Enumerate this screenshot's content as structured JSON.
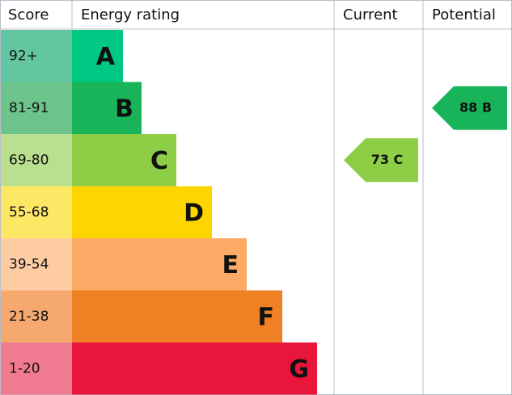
{
  "header": {
    "score": "Score",
    "rating": "Energy rating",
    "current": "Current",
    "potential": "Potential"
  },
  "bands": [
    {
      "score": "92+",
      "letter": "A",
      "color": "#00c781",
      "score_color": "#63c6a0"
    },
    {
      "score": "81-91",
      "letter": "B",
      "color": "#19b459",
      "score_color": "#6dc48a"
    },
    {
      "score": "69-80",
      "letter": "C",
      "color": "#8dce46",
      "score_color": "#badf8f"
    },
    {
      "score": "55-68",
      "letter": "D",
      "color": "#ffd500",
      "score_color": "#ffe766"
    },
    {
      "score": "39-54",
      "letter": "E",
      "color": "#fcaa65",
      "score_color": "#fdcca3"
    },
    {
      "score": "21-38",
      "letter": "F",
      "color": "#ef8023",
      "score_color": "#f5a96f"
    },
    {
      "score": "1-20",
      "letter": "G",
      "color": "#e9153b",
      "score_color": "#f07a8f"
    }
  ],
  "current": {
    "label": "73 C"
  },
  "potential": {
    "label": "88 B"
  }
}
